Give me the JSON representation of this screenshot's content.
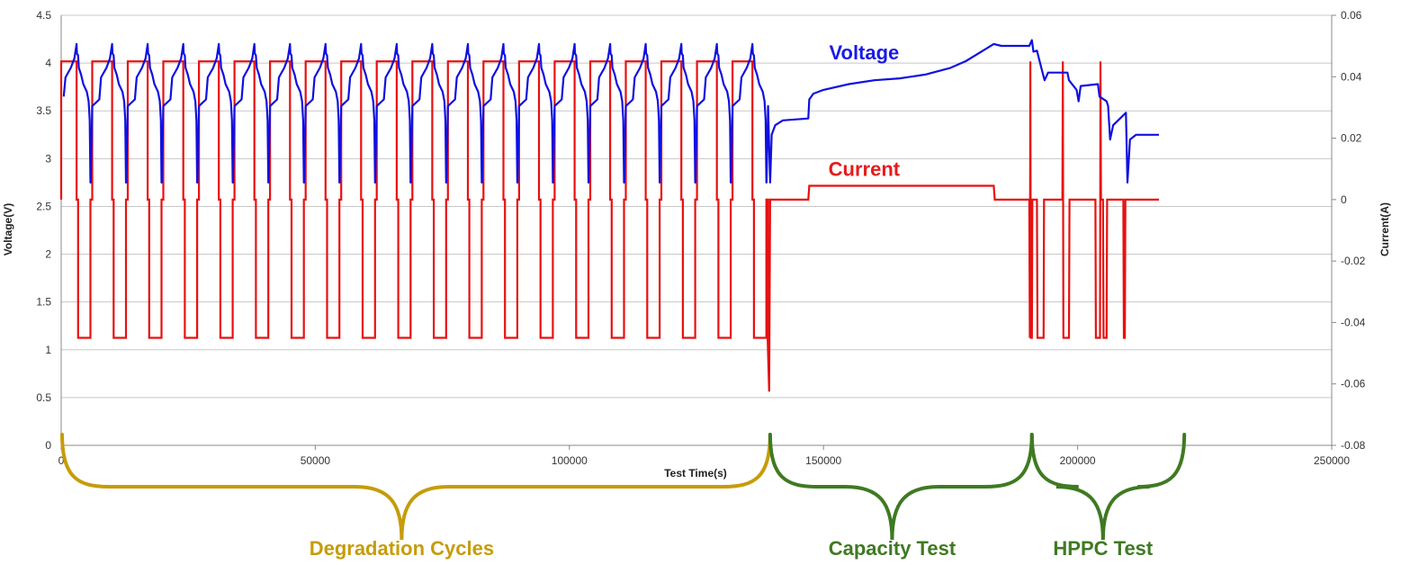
{
  "chart_data": {
    "type": "line",
    "title": "",
    "xlabel": "Test Time(s)",
    "ylabel": "Voltage(V)",
    "y2label": "Current(A)",
    "xlim": [
      0,
      250000
    ],
    "ylim": [
      0,
      4.5
    ],
    "y2lim": [
      -0.08,
      0.06
    ],
    "x_ticks": [
      0,
      50000,
      100000,
      150000,
      200000,
      250000
    ],
    "y_ticks": [
      0,
      0.5,
      1,
      1.5,
      2,
      2.5,
      3,
      3.5,
      4,
      4.5
    ],
    "y2_ticks": [
      -0.08,
      -0.06,
      -0.04,
      -0.02,
      0,
      0.02,
      0.04,
      0.06
    ],
    "x_tick_labels": [
      "0",
      "50000",
      "100000",
      "150000",
      "200000",
      "250000"
    ],
    "y_tick_labels": [
      "0",
      "0.5",
      "1",
      "1.5",
      "2",
      "2.5",
      "3",
      "3.5",
      "4",
      "4.5"
    ],
    "y2_tick_labels": [
      "-0.08",
      "-0.06",
      "-0.04",
      "-0.02",
      "0",
      "0.02",
      "0.04",
      "0.06"
    ],
    "gridlines": "horizontal",
    "degradation_cycles": {
      "count": 20,
      "first_start": 500,
      "period": 7000,
      "charge_fraction": 0.36,
      "current_charge_A": 0.045,
      "current_discharge_A": -0.045,
      "voltage_start_V": 3.65,
      "voltage_peak_V": 4.2,
      "voltage_discharge_knee_V": 3.75,
      "voltage_end_V": 2.75
    },
    "series": [
      {
        "name": "Voltage",
        "axis": "left",
        "color": "#1010e0",
        "capacity_and_hppc_points": [
          [
            139500,
            2.75
          ],
          [
            139800,
            3.25
          ],
          [
            140500,
            3.35
          ],
          [
            142000,
            3.4
          ],
          [
            147000,
            3.42
          ],
          [
            147200,
            3.62
          ],
          [
            148000,
            3.68
          ],
          [
            150000,
            3.72
          ],
          [
            155000,
            3.78
          ],
          [
            160000,
            3.82
          ],
          [
            165000,
            3.84
          ],
          [
            170000,
            3.88
          ],
          [
            175000,
            3.95
          ],
          [
            178000,
            4.02
          ],
          [
            182000,
            4.15
          ],
          [
            183500,
            4.2
          ],
          [
            185000,
            4.18
          ],
          [
            190500,
            4.18
          ],
          [
            191000,
            4.24
          ],
          [
            191300,
            4.12
          ],
          [
            192000,
            4.13
          ],
          [
            193000,
            3.92
          ],
          [
            193500,
            3.82
          ],
          [
            194200,
            3.9
          ],
          [
            198000,
            3.9
          ],
          [
            198300,
            3.82
          ],
          [
            199800,
            3.72
          ],
          [
            200200,
            3.6
          ],
          [
            200600,
            3.76
          ],
          [
            204000,
            3.78
          ],
          [
            204300,
            3.65
          ],
          [
            205700,
            3.6
          ],
          [
            206000,
            3.55
          ],
          [
            206400,
            3.2
          ],
          [
            207000,
            3.35
          ],
          [
            209500,
            3.48
          ],
          [
            209800,
            2.75
          ],
          [
            210300,
            3.2
          ],
          [
            211500,
            3.25
          ],
          [
            216000,
            3.25
          ]
        ]
      },
      {
        "name": "Current",
        "axis": "right",
        "color": "#e81010",
        "capacity_and_hppc_points": [
          [
            139000,
            -0.045
          ],
          [
            139300,
            -0.0625
          ],
          [
            139500,
            0
          ],
          [
            147000,
            0
          ],
          [
            147200,
            0.0045
          ],
          [
            183500,
            0.0045
          ],
          [
            183700,
            0
          ],
          [
            190500,
            0
          ],
          [
            190600,
            -0.045
          ],
          [
            190700,
            0.045
          ],
          [
            190800,
            -0.045
          ],
          [
            191000,
            -0.045
          ],
          [
            191100,
            0
          ],
          [
            192000,
            0
          ],
          [
            192100,
            -0.045
          ],
          [
            193300,
            -0.045
          ],
          [
            193400,
            0
          ],
          [
            197000,
            0
          ],
          [
            197100,
            0.045
          ],
          [
            197200,
            -0.045
          ],
          [
            198300,
            -0.045
          ],
          [
            198400,
            0
          ],
          [
            203500,
            0
          ],
          [
            203600,
            -0.045
          ],
          [
            204400,
            -0.045
          ],
          [
            204500,
            0.045
          ],
          [
            204600,
            0
          ],
          [
            205000,
            0
          ],
          [
            205100,
            -0.045
          ],
          [
            205700,
            -0.045
          ],
          [
            205800,
            0
          ],
          [
            209000,
            0
          ],
          [
            209100,
            -0.045
          ],
          [
            209300,
            -0.045
          ],
          [
            209400,
            0
          ],
          [
            216000,
            0
          ]
        ]
      }
    ],
    "annotations": [
      {
        "text": "Voltage",
        "color": "#1a1ae6",
        "at": [
          158000,
          4.04
        ]
      },
      {
        "text": "Current",
        "color": "#e61a1a",
        "at": [
          158000,
          2.82
        ]
      }
    ],
    "phases": [
      {
        "label": "Degradation Cycles",
        "color": "#c69c0a",
        "start": 0,
        "end": 139500,
        "label_x": 67000
      },
      {
        "label": "Capacity Test",
        "color": "#3f7a22",
        "start": 139500,
        "end": 191000,
        "label_x": 163500
      },
      {
        "label": "HPPC Test",
        "color": "#3f7a22",
        "start": 191000,
        "end": 221000,
        "label_x": 205000
      }
    ]
  }
}
